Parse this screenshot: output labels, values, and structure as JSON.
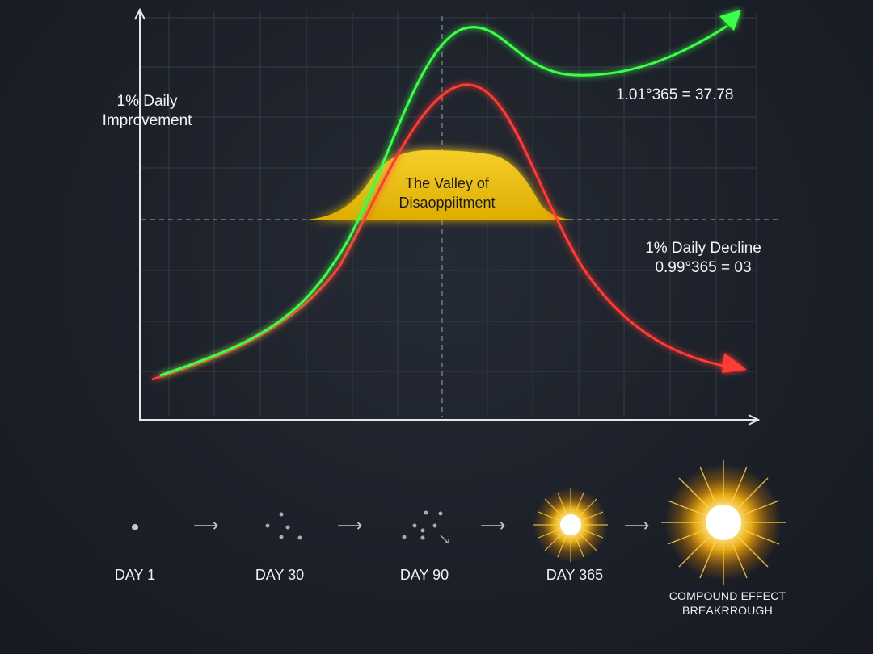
{
  "chart": {
    "y_axis_label_line1": "1% Daily",
    "y_axis_label_line2": "Improvement",
    "improvement_formula": "1.01°365 = 37.78",
    "decline_label": "1% Daily Decline",
    "decline_formula": "0.99°365 = 03",
    "valley_line1": "The Valley of",
    "valley_line2": "Disaoppiitment",
    "colors": {
      "improvement": "#3dff4a",
      "decline": "#ff3a34",
      "valley": "#f5c518",
      "grid": "#3a414c",
      "axis": "#e6e6e6"
    }
  },
  "timeline": {
    "stages": [
      {
        "label": "DAY 1",
        "icon": "single-dot-icon"
      },
      {
        "label": "DAY 30",
        "icon": "scattered-dots-icon"
      },
      {
        "label": "DAY 90",
        "icon": "clustered-dots-icon"
      },
      {
        "label": "DAY 365",
        "icon": "glowing-burst-icon"
      }
    ],
    "final": {
      "line1": "COMPOUND EFFECT",
      "line2": "BREAKRROUGH",
      "icon": "explosion-burst-icon"
    },
    "arrow_icon": "right-arrow-icon"
  }
}
